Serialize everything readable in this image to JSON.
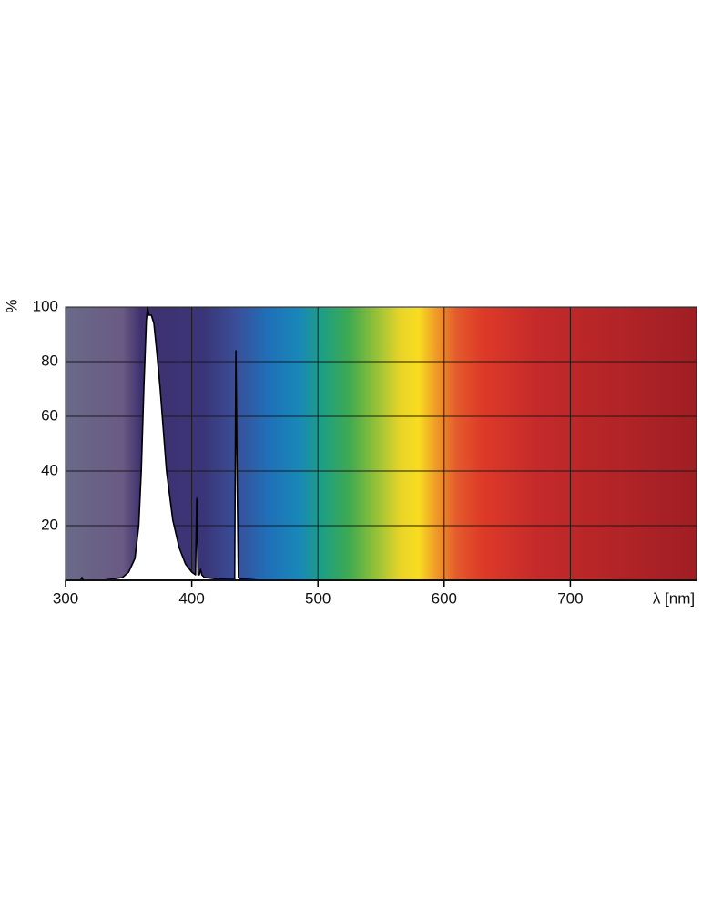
{
  "chart_data": {
    "type": "area",
    "x_label": "λ [nm]",
    "y_label": "%",
    "x": [
      300,
      312,
      313,
      314,
      330,
      345,
      350,
      355,
      358,
      360,
      362,
      364,
      365,
      366,
      368,
      370,
      372,
      375,
      378,
      380,
      385,
      390,
      395,
      400,
      403,
      404,
      405,
      406,
      407,
      408,
      410,
      420,
      430,
      434,
      435,
      436,
      437,
      438,
      445,
      455,
      800
    ],
    "series": [
      {
        "color": "#000000",
        "fill": "#ffffff",
        "values": [
          0,
          0,
          1,
          0,
          0,
          1,
          3,
          8,
          20,
          40,
          70,
          95,
          100,
          97,
          97,
          94,
          85,
          70,
          52,
          40,
          22,
          12,
          6,
          3,
          2,
          30,
          2,
          2,
          4,
          2,
          1,
          0.5,
          0.3,
          0.3,
          84,
          36,
          1,
          0.5,
          0.3,
          0,
          0
        ]
      }
    ],
    "xlim": [
      300,
      800
    ],
    "ylim": [
      0,
      100
    ],
    "xticks": [
      300,
      400,
      500,
      600,
      700
    ],
    "yticks": [
      20,
      40,
      60,
      80,
      100
    ],
    "grid": true
  }
}
